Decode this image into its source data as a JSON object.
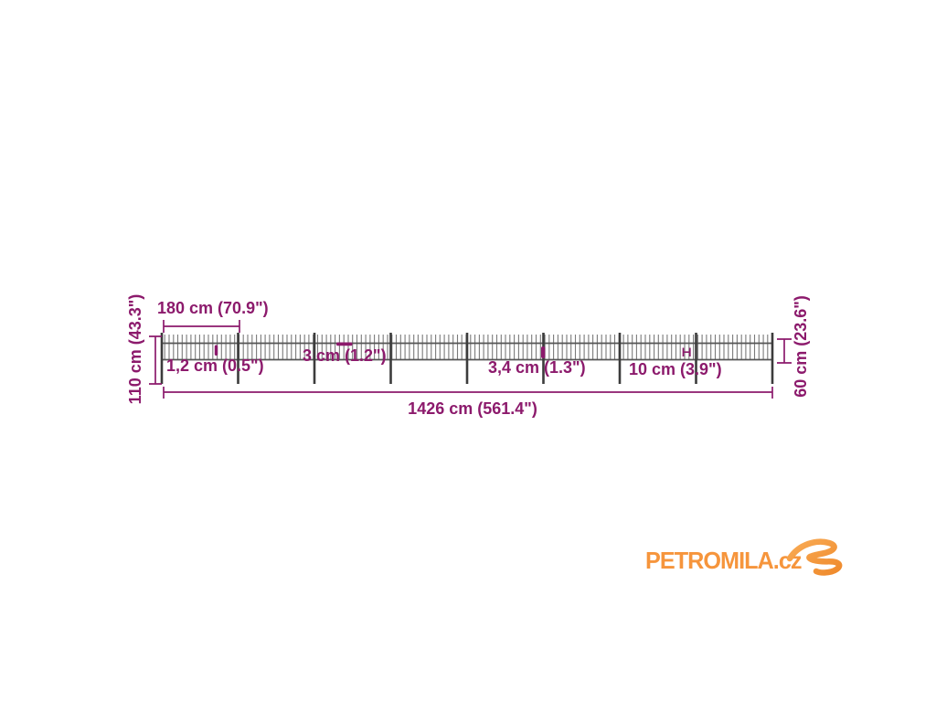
{
  "diagram": {
    "title": "garden-fence-dimension-diagram",
    "measurements": {
      "panel_width": "180 cm (70.9\")",
      "post_height": "110 cm (43.3\")",
      "picket_thickness": "1,2 cm (0.5\")",
      "picket_spacing": "3 cm (1.2\")",
      "post_thickness": "3,4 cm (1.3\")",
      "bottom_gap": "10 cm (3.9\")",
      "panel_height": "60 cm (23.6\")",
      "total_length": "1426 cm (561.4\")"
    },
    "colors": {
      "accent": "#8c1a6c",
      "fence_dark": "#3c3c3c",
      "fence_mid": "#555555",
      "fence_light": "#7b7b7b",
      "background": "#ffffff"
    }
  },
  "watermark": {
    "text": "PETROMILA.cz",
    "color": "#f6953c",
    "swoosh_light": "#f9ab55",
    "swoosh_dark": "#ef8a2c"
  }
}
